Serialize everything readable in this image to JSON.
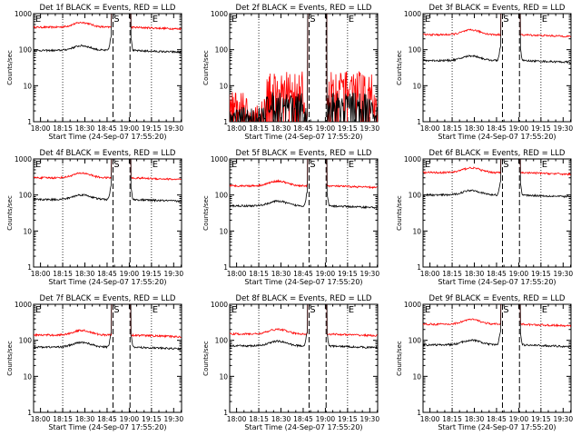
{
  "figure": {
    "start_time_label": "Start Time (24-Sep-07 17:55:20)",
    "ylabel": "Counts/sec",
    "x_ticks": [
      "18:00",
      "18:15",
      "18:30",
      "18:45",
      "19:00",
      "19:15",
      "19:30"
    ],
    "y_ticks": [
      "1",
      "10",
      "100",
      "1000"
    ],
    "marker_labels": [
      "E",
      "S",
      "E"
    ],
    "colors": {
      "events": "#000000",
      "lld": "#ff0000"
    }
  },
  "chart_data": [
    {
      "type": "line",
      "title": "Det 1f BLACK = Events, RED = LLD",
      "xlabel": "Start Time (24-Sep-07 17:55:20)",
      "ylabel": "Counts/sec",
      "ylim": [
        1,
        1000
      ],
      "log_y": true,
      "lld_level": 420,
      "events_level": 95,
      "noisy": false,
      "series": [
        {
          "name": "Events",
          "color": "#000000"
        },
        {
          "name": "LLD",
          "color": "#ff0000"
        }
      ]
    },
    {
      "type": "line",
      "title": "Det 2f BLACK = Events, RED = LLD",
      "xlabel": "Start Time (24-Sep-07 17:55:20)",
      "ylabel": "Counts/sec",
      "ylim": [
        1,
        1000
      ],
      "log_y": true,
      "lld_level": 2,
      "events_level": 1,
      "noisy": true,
      "series": [
        {
          "name": "Events",
          "color": "#000000"
        },
        {
          "name": "LLD",
          "color": "#ff0000"
        }
      ]
    },
    {
      "type": "line",
      "title": "Det 3f BLACK = Events, RED = LLD",
      "xlabel": "Start Time (24-Sep-07 17:55:20)",
      "ylabel": "Counts/sec",
      "ylim": [
        1,
        1000
      ],
      "log_y": true,
      "lld_level": 260,
      "events_level": 50,
      "noisy": false,
      "series": [
        {
          "name": "Events",
          "color": "#000000"
        },
        {
          "name": "LLD",
          "color": "#ff0000"
        }
      ]
    },
    {
      "type": "line",
      "title": "Det 4f BLACK = Events, RED = LLD",
      "xlabel": "Start Time (24-Sep-07 17:55:20)",
      "ylabel": "Counts/sec",
      "ylim": [
        1,
        1000
      ],
      "log_y": true,
      "lld_level": 300,
      "events_level": 75,
      "noisy": false,
      "series": [
        {
          "name": "Events",
          "color": "#000000"
        },
        {
          "name": "LLD",
          "color": "#ff0000"
        }
      ]
    },
    {
      "type": "line",
      "title": "Det 5f BLACK = Events, RED = LLD",
      "xlabel": "Start Time (24-Sep-07 17:55:20)",
      "ylabel": "Counts/sec",
      "ylim": [
        1,
        1000
      ],
      "log_y": true,
      "lld_level": 180,
      "events_level": 50,
      "noisy": false,
      "series": [
        {
          "name": "Events",
          "color": "#000000"
        },
        {
          "name": "LLD",
          "color": "#ff0000"
        }
      ]
    },
    {
      "type": "line",
      "title": "Det 6f BLACK = Events, RED = LLD",
      "xlabel": "Start Time (24-Sep-07 17:55:20)",
      "ylabel": "Counts/sec",
      "ylim": [
        1,
        1000
      ],
      "log_y": true,
      "lld_level": 420,
      "events_level": 100,
      "noisy": false,
      "series": [
        {
          "name": "Events",
          "color": "#000000"
        },
        {
          "name": "LLD",
          "color": "#ff0000"
        }
      ]
    },
    {
      "type": "line",
      "title": "Det 7f BLACK = Events, RED = LLD",
      "xlabel": "Start Time (24-Sep-07 17:55:20)",
      "ylabel": "Counts/sec",
      "ylim": [
        1,
        1000
      ],
      "log_y": true,
      "lld_level": 140,
      "events_level": 65,
      "noisy": false,
      "series": [
        {
          "name": "Events",
          "color": "#000000"
        },
        {
          "name": "LLD",
          "color": "#ff0000"
        }
      ]
    },
    {
      "type": "line",
      "title": "Det 8f BLACK = Events, RED = LLD",
      "xlabel": "Start Time (24-Sep-07 17:55:20)",
      "ylabel": "Counts/sec",
      "ylim": [
        1,
        1000
      ],
      "log_y": true,
      "lld_level": 150,
      "events_level": 70,
      "noisy": false,
      "series": [
        {
          "name": "Events",
          "color": "#000000"
        },
        {
          "name": "LLD",
          "color": "#ff0000"
        }
      ]
    },
    {
      "type": "line",
      "title": "Det 9f BLACK = Events, RED = LLD",
      "xlabel": "Start Time (24-Sep-07 17:55:20)",
      "ylabel": "Counts/sec",
      "ylim": [
        1,
        1000
      ],
      "log_y": true,
      "lld_level": 280,
      "events_level": 75,
      "noisy": false,
      "series": [
        {
          "name": "Events",
          "color": "#000000"
        },
        {
          "name": "LLD",
          "color": "#ff0000"
        }
      ]
    }
  ]
}
